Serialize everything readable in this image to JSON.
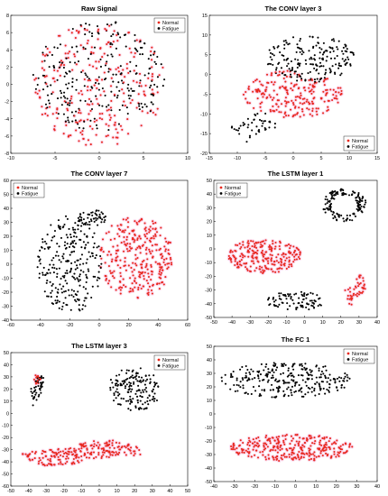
{
  "chart_data": [
    {
      "type": "scatter",
      "title": "Raw Signal",
      "xlim": [
        -10,
        10
      ],
      "ylim": [
        -8,
        8
      ],
      "xticks": [
        "-10",
        "-5",
        "0",
        "5",
        "10"
      ],
      "yticks": [
        "-8",
        "-6",
        "-4",
        "-2",
        "0",
        "2",
        "4",
        "6",
        "8"
      ],
      "legend": {
        "placement": "top-right",
        "entries": [
          "Normal",
          "Fatigue"
        ]
      },
      "series": [
        {
          "name": "Normal",
          "color": "#e8281e",
          "clusters": [
            {
              "cx": 0,
              "cy": 0,
              "rx": 7.5,
              "ry": 7.2,
              "shape": "disk",
              "n": 260
            }
          ]
        },
        {
          "name": "Fatigue",
          "color": "#000000",
          "clusters": [
            {
              "cx": 0,
              "cy": 1,
              "rx": 7.5,
              "ry": 6.5,
              "shape": "disk",
              "n": 240
            }
          ]
        }
      ]
    },
    {
      "type": "scatter",
      "title": "The CONV layer 3",
      "xlim": [
        -15,
        15
      ],
      "ylim": [
        -20,
        15
      ],
      "xticks": [
        "-15",
        "-10",
        "-5",
        "0",
        "5",
        "10",
        "15"
      ],
      "yticks": [
        "-20",
        "-15",
        "-10",
        "-5",
        "0",
        "5",
        "10",
        "15"
      ],
      "legend": {
        "placement": "bottom-right",
        "entries": [
          "Normal",
          "Fatigue"
        ]
      },
      "series": [
        {
          "name": "Normal",
          "color": "#e8281e",
          "clusters": [
            {
              "cx": 0,
              "cy": -5,
              "rx": 9,
              "ry": 6,
              "shape": "disk",
              "n": 230
            }
          ]
        },
        {
          "name": "Fatigue",
          "color": "#000000",
          "clusters": [
            {
              "cx": 3,
              "cy": 4,
              "rx": 8,
              "ry": 6,
              "shape": "disk",
              "n": 200
            },
            {
              "cx": -7,
              "cy": -13,
              "rx": 4,
              "ry": 3,
              "shape": "band",
              "n": 45
            }
          ]
        }
      ]
    },
    {
      "type": "scatter",
      "title": "The CONV layer 7",
      "xlim": [
        -60,
        60
      ],
      "ylim": [
        -40,
        60
      ],
      "xticks": [
        "-60",
        "-40",
        "-20",
        "0",
        "20",
        "40",
        "60"
      ],
      "yticks": [
        "-40",
        "-30",
        "-20",
        "-10",
        "0",
        "10",
        "20",
        "30",
        "40",
        "50",
        "60"
      ],
      "legend": {
        "placement": "top-left",
        "entries": [
          "Normal",
          "Fatigue"
        ]
      },
      "series": [
        {
          "name": "Normal",
          "color": "#e8281e",
          "clusters": [
            {
              "cx": 25,
              "cy": 5,
              "rx": 25,
              "ry": 30,
              "shape": "disk",
              "n": 300
            }
          ]
        },
        {
          "name": "Fatigue",
          "color": "#000000",
          "clusters": [
            {
              "cx": -20,
              "cy": 0,
              "rx": 22,
              "ry": 35,
              "shape": "disk",
              "n": 260
            },
            {
              "cx": -5,
              "cy": 33,
              "rx": 10,
              "ry": 6,
              "shape": "disk",
              "n": 50
            }
          ]
        }
      ]
    },
    {
      "type": "scatter",
      "title": "The LSTM layer 1",
      "xlim": [
        -50,
        40
      ],
      "ylim": [
        -50,
        50
      ],
      "xticks": [
        "-50",
        "-40",
        "-30",
        "-20",
        "-10",
        "0",
        "10",
        "20",
        "30",
        "40"
      ],
      "yticks": [
        "-50",
        "-40",
        "-30",
        "-20",
        "-10",
        "0",
        "10",
        "20",
        "30",
        "40",
        "50"
      ],
      "legend": {
        "placement": "top-left",
        "entries": [
          "Normal",
          "Fatigue"
        ]
      },
      "series": [
        {
          "name": "Normal",
          "color": "#e8281e",
          "clusters": [
            {
              "cx": -22,
              "cy": -5,
              "rx": 20,
              "ry": 13,
              "shape": "disk",
              "n": 230
            },
            {
              "cx": 28,
              "cy": -30,
              "rx": 6,
              "ry": 8,
              "shape": "band",
              "n": 45
            }
          ]
        },
        {
          "name": "Fatigue",
          "color": "#000000",
          "clusters": [
            {
              "cx": 22,
              "cy": 32,
              "rx": 12,
              "ry": 12,
              "shape": "ring",
              "n": 140
            },
            {
              "cx": -5,
              "cy": -38,
              "rx": 16,
              "ry": 7,
              "shape": "disk",
              "n": 90
            }
          ]
        }
      ]
    },
    {
      "type": "scatter",
      "title": "The LSTM layer 3",
      "xlim": [
        -50,
        50
      ],
      "ylim": [
        -60,
        50
      ],
      "xticks": [
        "-50",
        "-40",
        "-30",
        "-20",
        "-10",
        "0",
        "10",
        "20",
        "30",
        "40",
        "50"
      ],
      "yticks": [
        "-60",
        "-50",
        "-40",
        "-30",
        "-20",
        "-10",
        "0",
        "10",
        "20",
        "30",
        "40",
        "50"
      ],
      "legend": {
        "placement": "top-right",
        "entries": [
          "Normal",
          "Fatigue"
        ]
      },
      "series": [
        {
          "name": "Normal",
          "color": "#e8281e",
          "clusters": [
            {
              "cx": -10,
              "cy": -33,
              "rx": 35,
              "ry": 8,
              "shape": "band",
              "n": 230
            },
            {
              "cx": -35,
              "cy": 28,
              "rx": 2,
              "ry": 4,
              "shape": "disk",
              "n": 20
            }
          ]
        },
        {
          "name": "Fatigue",
          "color": "#000000",
          "clusters": [
            {
              "cx": 20,
              "cy": 20,
              "rx": 15,
              "ry": 18,
              "shape": "disk",
              "n": 160
            },
            {
              "cx": -35,
              "cy": 20,
              "rx": 4,
              "ry": 12,
              "shape": "band",
              "n": 40
            }
          ]
        }
      ]
    },
    {
      "type": "scatter",
      "title": "The FC 1",
      "xlim": [
        -40,
        40
      ],
      "ylim": [
        -50,
        50
      ],
      "xticks": [
        "-40",
        "-30",
        "-20",
        "-10",
        "0",
        "10",
        "20",
        "30",
        "40"
      ],
      "yticks": [
        "-50",
        "-40",
        "-30",
        "-20",
        "-10",
        "0",
        "10",
        "20",
        "30",
        "40",
        "50"
      ],
      "legend": {
        "placement": "top-right",
        "entries": [
          "Normal",
          "Fatigue"
        ]
      },
      "series": [
        {
          "name": "Normal",
          "color": "#e8281e",
          "clusters": [
            {
              "cx": -2,
              "cy": -25,
              "rx": 30,
              "ry": 10,
              "shape": "disk",
              "n": 300
            }
          ]
        },
        {
          "name": "Fatigue",
          "color": "#000000",
          "clusters": [
            {
              "cx": -5,
              "cy": 25,
              "rx": 32,
              "ry": 13,
              "shape": "disk",
              "n": 280
            }
          ]
        }
      ]
    }
  ]
}
